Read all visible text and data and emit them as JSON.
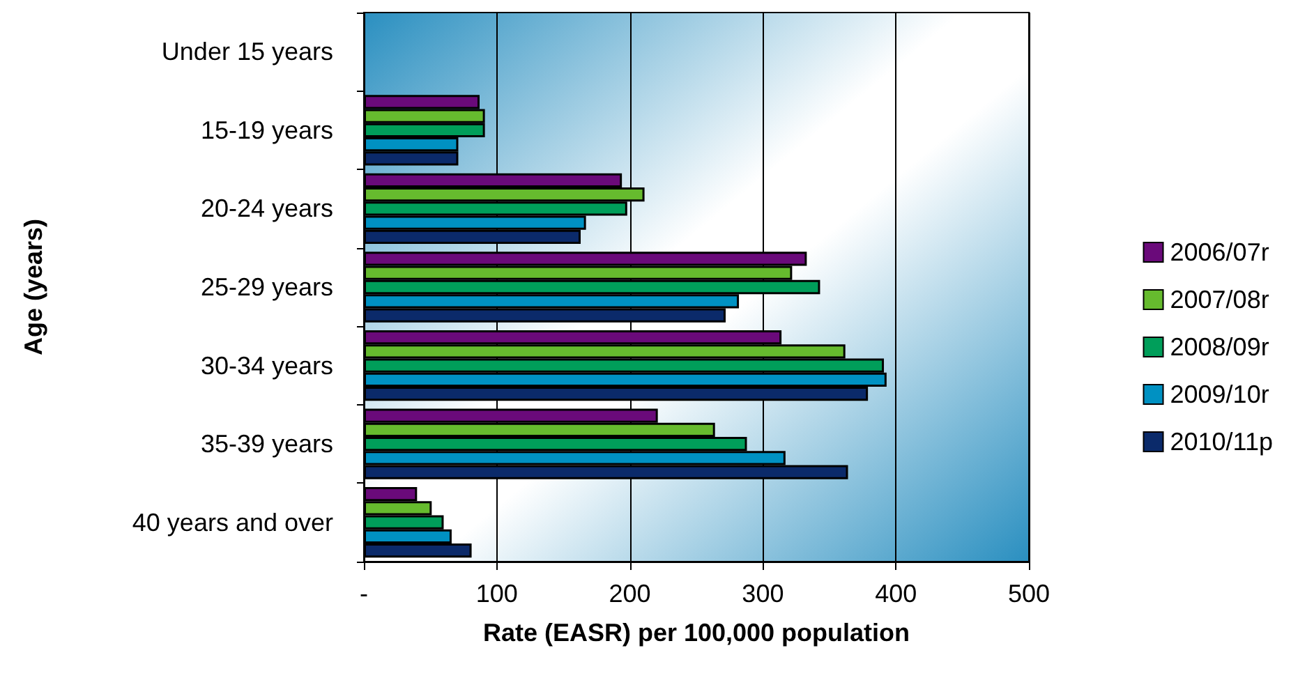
{
  "chart_data": {
    "type": "bar",
    "orientation": "horizontal",
    "xlabel": "Rate (EASR) per 100,000 population",
    "ylabel": "Age (years)",
    "categories": [
      "Under 15 years",
      "15-19 years",
      "20-24 years",
      "25-29 years",
      "30-34 years",
      "35-39 years",
      "40 years and over"
    ],
    "series": [
      {
        "name": "2006/07r",
        "color": "#6a0a7a",
        "values": [
          null,
          87,
          194,
          333,
          314,
          221,
          40
        ]
      },
      {
        "name": "2007/08r",
        "color": "#66bb2e",
        "values": [
          null,
          91,
          211,
          322,
          362,
          264,
          51
        ]
      },
      {
        "name": "2008/09r",
        "color": "#009e5a",
        "values": [
          null,
          91,
          198,
          343,
          391,
          288,
          60
        ]
      },
      {
        "name": "2009/10r",
        "color": "#0091c2",
        "values": [
          null,
          71,
          167,
          282,
          393,
          317,
          66
        ]
      },
      {
        "name": "2010/11p",
        "color": "#0b2a6a",
        "values": [
          null,
          71,
          163,
          272,
          379,
          364,
          81
        ]
      }
    ],
    "xlim": [
      0,
      500
    ],
    "xticks": [
      {
        "value": 0,
        "label": "-"
      },
      100,
      200,
      300,
      400,
      500
    ],
    "grid": "x",
    "legend": "right"
  }
}
